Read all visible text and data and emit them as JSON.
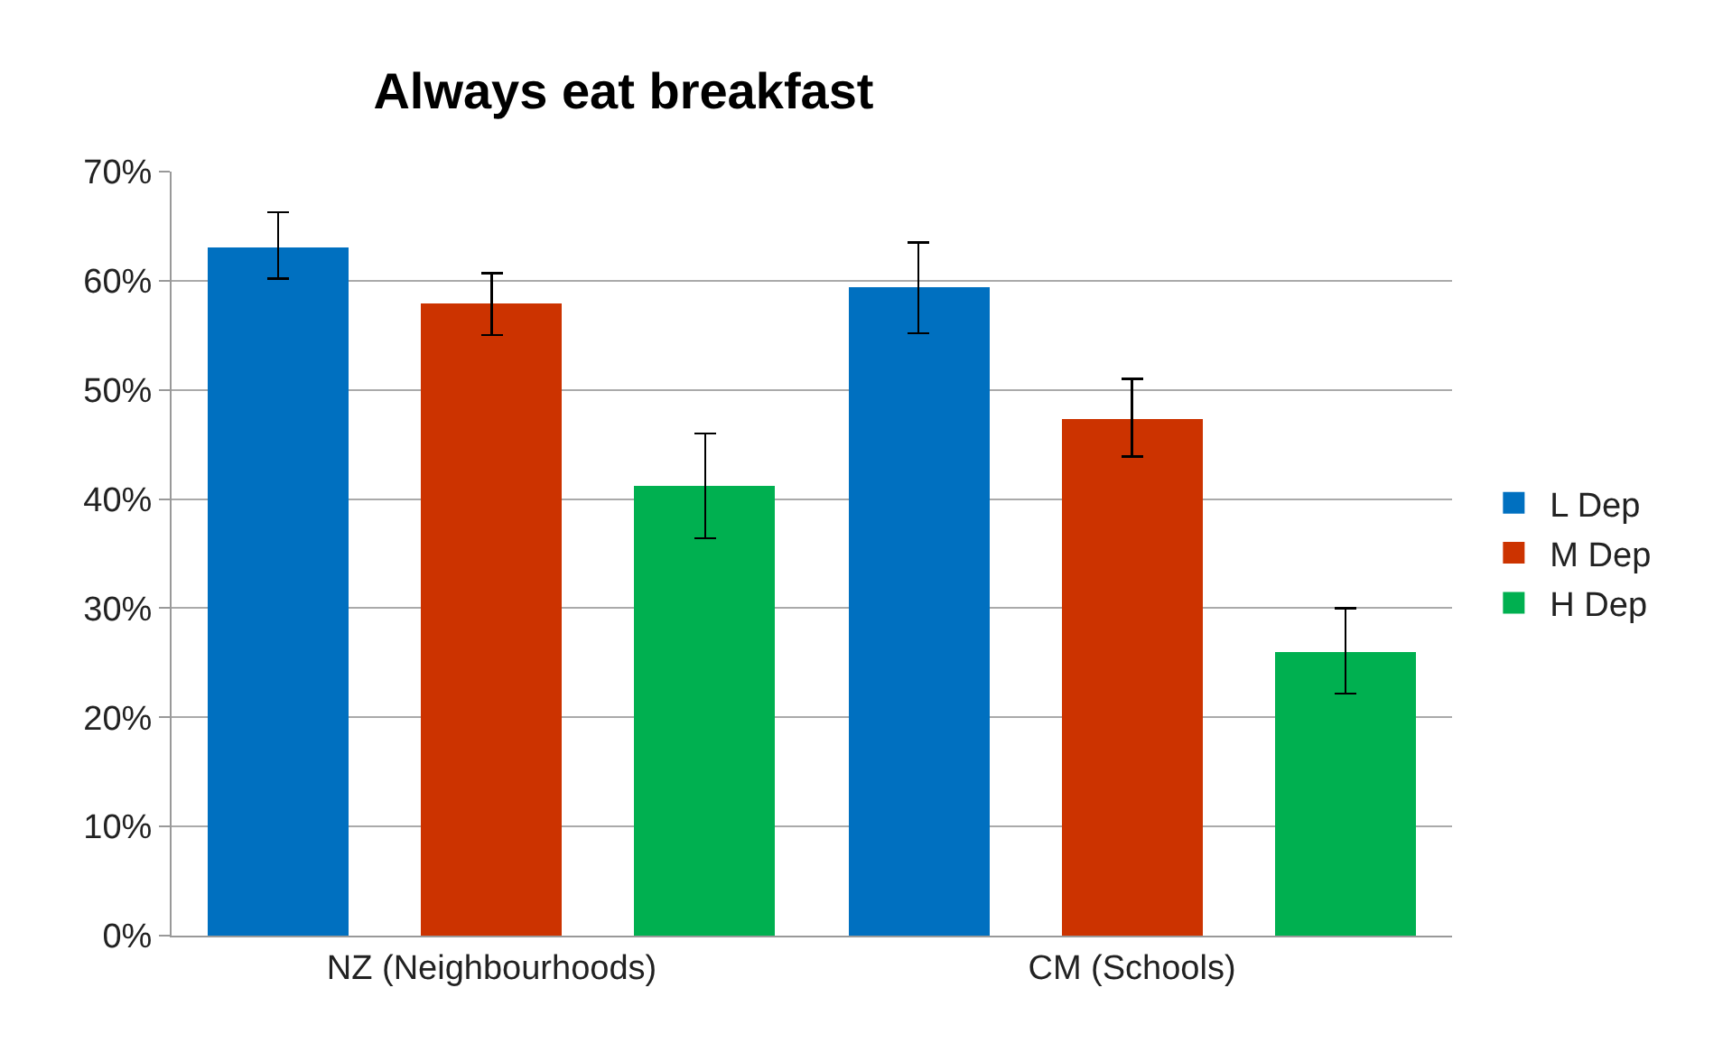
{
  "chart_data": {
    "type": "bar",
    "title": "Always eat breakfast",
    "categories": [
      "NZ (Neighbourhoods)",
      "CM (Schools)"
    ],
    "series": [
      {
        "name": "L Dep",
        "color": "#0070c0",
        "values": [
          63.1,
          59.4
        ],
        "errors": [
          [
            60.2,
            66.3
          ],
          [
            55.2,
            63.5
          ]
        ]
      },
      {
        "name": "M Dep",
        "color": "#cc3300",
        "values": [
          57.9,
          47.4
        ],
        "errors": [
          [
            55.0,
            60.7
          ],
          [
            43.9,
            51.0
          ]
        ]
      },
      {
        "name": "H Dep",
        "color": "#00b050",
        "values": [
          41.2,
          26.0
        ],
        "errors": [
          [
            36.4,
            46.0
          ],
          [
            22.2,
            30.0
          ]
        ]
      }
    ],
    "ylim": [
      0,
      70
    ],
    "yticks": [
      {
        "value": 0,
        "label": "0%"
      },
      {
        "value": 10,
        "label": "10%"
      },
      {
        "value": 20,
        "label": "20%"
      },
      {
        "value": 30,
        "label": "30%"
      },
      {
        "value": 40,
        "label": "40%"
      },
      {
        "value": 50,
        "label": "50%"
      },
      {
        "value": 60,
        "label": "60%"
      },
      {
        "value": 70,
        "label": "70%"
      }
    ],
    "grid": "y",
    "legend": "right"
  }
}
